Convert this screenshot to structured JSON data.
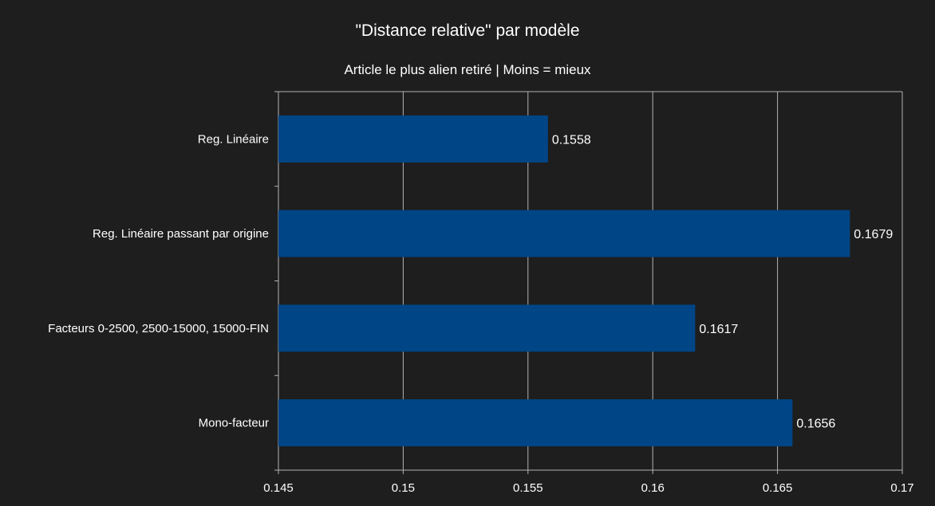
{
  "chart_data": {
    "type": "bar",
    "orientation": "horizontal",
    "title": "\"Distance relative\" par modèle",
    "subtitle": "Article le plus alien retiré | Moins = mieux",
    "categories": [
      "Reg. Linéaire",
      "Reg. Linéaire passant par origine",
      "Facteurs 0-2500, 2500-15000, 15000-FIN",
      "Mono-facteur"
    ],
    "values": [
      0.1558,
      0.1679,
      0.1617,
      0.1656
    ],
    "value_labels": [
      "0.1558",
      "0.1679",
      "0.1617",
      "0.1656"
    ],
    "xlim": [
      0.145,
      0.17
    ],
    "xticks": [
      0.145,
      0.15,
      0.155,
      0.16,
      0.165,
      0.17
    ],
    "xtick_labels": [
      "0.145",
      "0.15",
      "0.155",
      "0.16",
      "0.165",
      "0.17"
    ],
    "grid": true,
    "legend": "none",
    "colors": {
      "bar": "#004586",
      "background": "#1e1e1e",
      "grid": "#b3b3b3",
      "text": "#ffffff"
    }
  }
}
